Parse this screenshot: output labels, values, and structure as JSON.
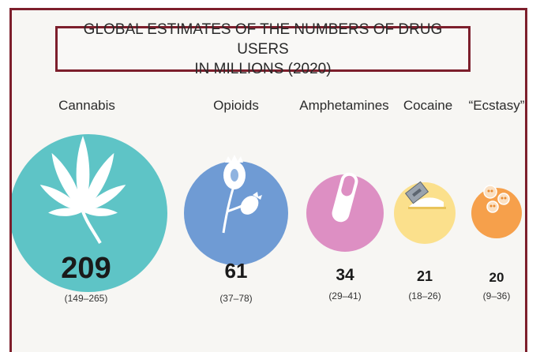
{
  "title": {
    "line1": "GLOBAL ESTIMATES OF THE NUMBERS OF DRUG USERS",
    "line2": "IN MILLIONS (2020)"
  },
  "chart_data": {
    "type": "bubble",
    "title": "GLOBAL ESTIMATES OF THE NUMBERS OF DRUG USERS IN MILLIONS (2020)",
    "units": "millions",
    "categories": [
      "Cannabis",
      "Opioids",
      "Amphetamines",
      "Cocaine",
      "“Ecstasy”"
    ],
    "values": [
      209,
      61,
      34,
      21,
      20
    ],
    "ranges": [
      "(149–265)",
      "(37–78)",
      "(29–41)",
      "(18–26)",
      "(9–36)"
    ],
    "colors": [
      "#5ec4c6",
      "#6f9bd4",
      "#dd8fc3",
      "#fbe08c",
      "#f6a04b"
    ],
    "icons": [
      "cannabis-leaf-icon",
      "poppy-icon",
      "capsule-icon",
      "cocaine-razor-icon",
      "ecstasy-pills-icon"
    ]
  }
}
